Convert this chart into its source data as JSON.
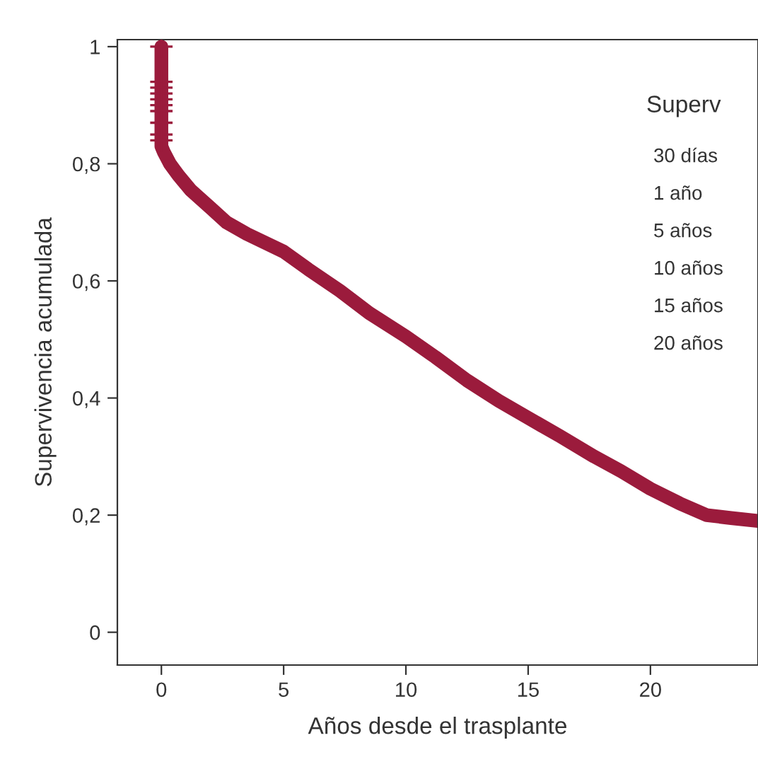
{
  "chart_data": {
    "type": "line",
    "xlabel": "Años desde el trasplante",
    "ylabel": "Supervivencia acumulada",
    "xlim": [
      -1.8,
      24.4
    ],
    "ylim": [
      -0.056,
      1.012
    ],
    "xticks": [
      0,
      5,
      10,
      15,
      20
    ],
    "yticks": [
      {
        "value": 0,
        "label": "0"
      },
      {
        "value": 0.2,
        "label": "0,2"
      },
      {
        "value": 0.4,
        "label": "0,4"
      },
      {
        "value": 0.6,
        "label": "0,6"
      },
      {
        "value": 0.8,
        "label": "0,8"
      },
      {
        "value": 1,
        "label": "1"
      }
    ],
    "grid": false,
    "legend": false,
    "series": [
      {
        "color": "#9b1b3c",
        "marker": "none",
        "x": [
          0,
          0,
          0.1,
          0.35,
          0.7,
          1.2,
          2,
          2.66,
          3.5,
          5,
          6,
          7.3,
          8.5,
          10,
          11.2,
          12.5,
          13.8,
          15,
          16.3,
          17.7,
          18.8,
          20,
          21.2,
          22.3,
          23.3,
          24.4
        ],
        "values": [
          1,
          0.83,
          0.82,
          0.8,
          0.78,
          0.755,
          0.725,
          0.7,
          0.68,
          0.65,
          0.62,
          0.583,
          0.545,
          0.505,
          0.47,
          0.43,
          0.395,
          0.366,
          0.335,
          0.3,
          0.275,
          0.245,
          0.22,
          0.2,
          0.195,
          0.19
        ]
      },
      {
        "type": "scatter",
        "color": "#9b1b3c",
        "marker": "cross",
        "x": [
          0,
          0,
          0,
          0,
          0,
          0,
          0,
          0,
          0,
          0
        ],
        "values": [
          1,
          0.94,
          0.93,
          0.92,
          0.91,
          0.9,
          0.89,
          0.87,
          0.85,
          0.84
        ]
      }
    ],
    "annotations": [
      "Superv",
      "30 días",
      "1 año",
      "5 años",
      "10 años",
      "15 años",
      "20 años"
    ]
  }
}
